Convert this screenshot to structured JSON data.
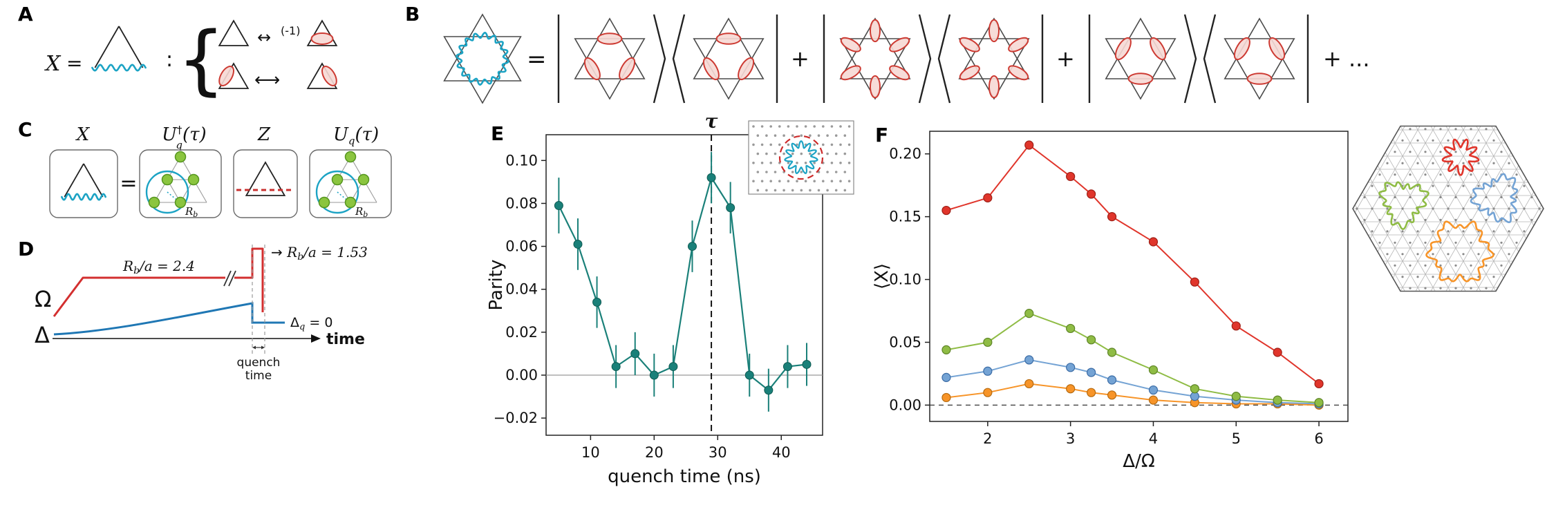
{
  "panel_labels": {
    "A": "A",
    "B": "B",
    "C": "C",
    "D": "D",
    "E": "E",
    "F": "F"
  },
  "colors": {
    "cyan_wavy": "#1ca3c4",
    "dimer_stroke": "#cd3a32",
    "dimer_fill": "#f6d8d4",
    "atom_green_fill": "#8bc53f",
    "atom_green_edge": "#55951f",
    "pulse_red": "#d32f2f",
    "pulse_blue": "#1f77b4"
  },
  "panelA": {
    "x_label": "X",
    "equals": "=",
    "colon": ":",
    "brace": "{",
    "arrow_double": "↔",
    "minus_one": "(-1)",
    "arrow_long": "⟷"
  },
  "panelB": {
    "equals": "=",
    "plus": "+",
    "plus_dots": "+ ..."
  },
  "panelC": {
    "equals": "=",
    "op_x": "X",
    "op_z": "Z",
    "u_base": "U",
    "u_sub": "q",
    "u_dagger": "†",
    "u_arg": "(τ)",
    "rb_base": "R",
    "rb_sub": "b"
  },
  "panelD": {
    "omega": "Ω",
    "delta": "Δ",
    "rb_plateau": {
      "base": "R",
      "sub": "b",
      "rest": "/a = 2.4"
    },
    "rb_quench": {
      "arrow": "→ ",
      "base": "R",
      "sub": "b",
      "rest": "/a = 1.53"
    },
    "delta_q": {
      "base": "Δ",
      "sub": "q",
      "rest": " = 0"
    },
    "time_axis_label": "time",
    "quench_label_line1": "quench",
    "quench_label_line2": "time"
  },
  "chart_data": [
    {
      "id": "E",
      "type": "scatter",
      "xlabel": "quench time (ns)",
      "ylabel": "Parity",
      "xlim": [
        3,
        46.5
      ],
      "ylim": [
        -0.028,
        0.112
      ],
      "xticks": [
        10,
        20,
        30,
        40
      ],
      "xtick_labels": [
        "10",
        "20",
        "30",
        "40"
      ],
      "yticks": [
        -0.02,
        0,
        0.02,
        0.04,
        0.06,
        0.08,
        0.1
      ],
      "ytick_labels": [
        "−0.02",
        "0.00",
        "0.02",
        "0.04",
        "0.06",
        "0.08",
        "0.10"
      ],
      "x": [
        5,
        8,
        11,
        14,
        17,
        20,
        23,
        26,
        29,
        32,
        35,
        38,
        41,
        44
      ],
      "y": [
        0.079,
        0.061,
        0.034,
        0.004,
        0.01,
        0.0,
        0.004,
        0.06,
        0.092,
        0.078,
        0.0,
        -0.007,
        0.004,
        0.005
      ],
      "yerr": [
        0.013,
        0.012,
        0.012,
        0.01,
        0.01,
        0.01,
        0.01,
        0.012,
        0.012,
        0.012,
        0.01,
        0.01,
        0.01,
        0.01
      ],
      "color": "#1a8079",
      "marker_edge": "#0e5a52",
      "hline": 0,
      "vline": 29,
      "vline_label": "τ",
      "grid": false,
      "inset": {
        "wavy_loop_color": "#1ca3c4",
        "dashed_circle_color": "#cc2a2a",
        "site_color": "#9a9a9a"
      }
    },
    {
      "id": "F",
      "type": "line-scatter",
      "xlabel": "Δ/Ω",
      "ylabel": "⟨X⟩",
      "xlim": [
        1.3,
        6.35
      ],
      "ylim": [
        -0.013,
        0.218
      ],
      "xticks": [
        2,
        3,
        4,
        5,
        6
      ],
      "xtick_labels": [
        "2",
        "3",
        "4",
        "5",
        "6"
      ],
      "yticks": [
        0,
        0.05,
        0.1,
        0.15,
        0.2
      ],
      "ytick_labels": [
        "0.00",
        "0.05",
        "0.10",
        "0.15",
        "0.20"
      ],
      "x": [
        1.5,
        2,
        2.5,
        3,
        3.25,
        3.5,
        4,
        4.5,
        5,
        5.5,
        6
      ],
      "series": [
        {
          "name": "red-star-loop",
          "color": "#e0352b",
          "edge": "#9c1f16",
          "values": [
            0.155,
            0.165,
            0.207,
            0.182,
            0.168,
            0.15,
            0.13,
            0.098,
            0.063,
            0.042,
            0.017
          ]
        },
        {
          "name": "green-triangle-loop",
          "color": "#8fbc45",
          "edge": "#5d8426",
          "values": [
            0.044,
            0.05,
            0.073,
            0.061,
            0.052,
            0.042,
            0.028,
            0.013,
            0.007,
            0.004,
            0.002
          ]
        },
        {
          "name": "blue-triangle-loop",
          "color": "#74a3d4",
          "edge": "#3a6ba5",
          "values": [
            0.022,
            0.027,
            0.036,
            0.03,
            0.026,
            0.02,
            0.012,
            0.007,
            0.004,
            0.002,
            0.001
          ]
        },
        {
          "name": "orange-hexagon-loop",
          "color": "#f79428",
          "edge": "#b56a10",
          "values": [
            0.006,
            0.01,
            0.017,
            0.013,
            0.01,
            0.008,
            0.004,
            0.002,
            0.001,
            0.001,
            0.0
          ]
        }
      ],
      "hline_dashed": 0,
      "grid": false,
      "inset_loops": [
        {
          "name": "red-star-loop",
          "color": "#e0352b"
        },
        {
          "name": "blue-triangle-loop",
          "color": "#74a3d4"
        },
        {
          "name": "green-triangle-loop",
          "color": "#8fbc45"
        },
        {
          "name": "orange-hexagon-loop",
          "color": "#f79428"
        }
      ]
    }
  ]
}
